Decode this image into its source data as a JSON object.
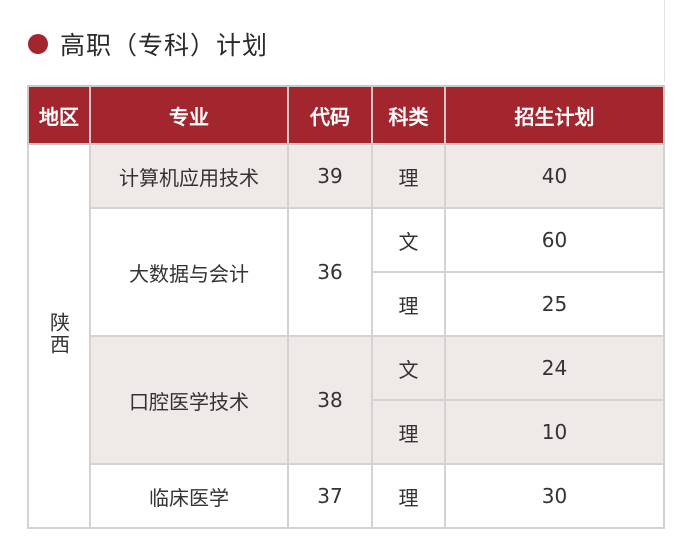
{
  "title": "高职（专科）计划",
  "colors": {
    "header": "#a3262e",
    "shaded_row": "#efe9e8",
    "bullet": "#a3262e"
  },
  "table": {
    "headers": [
      "地区",
      "专业",
      "代码",
      "科类",
      "招生计划"
    ],
    "region": "陕西",
    "majors": [
      {
        "name": "计算机应用技术",
        "code": "39",
        "rows": [
          {
            "category": "理",
            "plan": "40"
          }
        ]
      },
      {
        "name": "大数据与会计",
        "code": "36",
        "rows": [
          {
            "category": "文",
            "plan": "60"
          },
          {
            "category": "理",
            "plan": "25"
          }
        ]
      },
      {
        "name": "口腔医学技术",
        "code": "38",
        "rows": [
          {
            "category": "文",
            "plan": "24"
          },
          {
            "category": "理",
            "plan": "10"
          }
        ]
      },
      {
        "name": "临床医学",
        "code": "37",
        "rows": [
          {
            "category": "理",
            "plan": "30"
          }
        ]
      }
    ]
  }
}
